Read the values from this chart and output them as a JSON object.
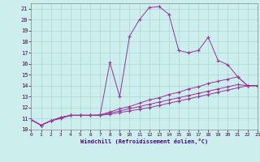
{
  "xlabel": "Windchill (Refroidissement éolien,°C)",
  "bg_color": "#cceeed",
  "grid_color": "#aad8d8",
  "line_color": "#993399",
  "xlim": [
    0,
    23
  ],
  "ylim": [
    10,
    21.5
  ],
  "xticks": [
    0,
    1,
    2,
    3,
    4,
    5,
    6,
    7,
    8,
    9,
    10,
    11,
    12,
    13,
    14,
    15,
    16,
    17,
    18,
    19,
    20,
    21,
    22,
    23
  ],
  "yticks": [
    10,
    11,
    12,
    13,
    14,
    15,
    16,
    17,
    18,
    19,
    20,
    21
  ],
  "series1": [
    [
      0,
      10.9
    ],
    [
      1,
      10.4
    ],
    [
      2,
      10.8
    ],
    [
      3,
      11.0
    ],
    [
      4,
      11.3
    ],
    [
      5,
      11.3
    ],
    [
      6,
      11.3
    ],
    [
      7,
      11.3
    ],
    [
      8,
      16.1
    ],
    [
      9,
      13.0
    ],
    [
      10,
      18.5
    ],
    [
      11,
      20.0
    ],
    [
      12,
      21.1
    ],
    [
      13,
      21.2
    ],
    [
      14,
      20.5
    ],
    [
      15,
      17.2
    ],
    [
      16,
      17.0
    ],
    [
      17,
      17.2
    ],
    [
      18,
      18.4
    ],
    [
      19,
      16.3
    ],
    [
      20,
      15.9
    ],
    [
      21,
      14.8
    ],
    [
      22,
      14.0
    ],
    [
      23,
      14.0
    ]
  ],
  "series2": [
    [
      0,
      10.9
    ],
    [
      1,
      10.4
    ],
    [
      2,
      10.8
    ],
    [
      3,
      11.1
    ],
    [
      4,
      11.3
    ],
    [
      5,
      11.3
    ],
    [
      6,
      11.3
    ],
    [
      7,
      11.35
    ],
    [
      8,
      11.6
    ],
    [
      9,
      11.9
    ],
    [
      10,
      12.1
    ],
    [
      11,
      12.4
    ],
    [
      12,
      12.7
    ],
    [
      13,
      12.9
    ],
    [
      14,
      13.2
    ],
    [
      15,
      13.4
    ],
    [
      16,
      13.7
    ],
    [
      17,
      13.9
    ],
    [
      18,
      14.2
    ],
    [
      19,
      14.4
    ],
    [
      20,
      14.6
    ],
    [
      21,
      14.8
    ],
    [
      22,
      14.0
    ],
    [
      23,
      14.0
    ]
  ],
  "series3": [
    [
      0,
      10.9
    ],
    [
      1,
      10.4
    ],
    [
      2,
      10.8
    ],
    [
      3,
      11.1
    ],
    [
      4,
      11.3
    ],
    [
      5,
      11.3
    ],
    [
      6,
      11.3
    ],
    [
      7,
      11.3
    ],
    [
      8,
      11.5
    ],
    [
      9,
      11.7
    ],
    [
      10,
      11.9
    ],
    [
      11,
      12.1
    ],
    [
      12,
      12.3
    ],
    [
      13,
      12.5
    ],
    [
      14,
      12.7
    ],
    [
      15,
      12.9
    ],
    [
      16,
      13.1
    ],
    [
      17,
      13.3
    ],
    [
      18,
      13.5
    ],
    [
      19,
      13.7
    ],
    [
      20,
      13.9
    ],
    [
      21,
      14.1
    ],
    [
      22,
      14.0
    ],
    [
      23,
      14.0
    ]
  ],
  "series4": [
    [
      0,
      10.9
    ],
    [
      1,
      10.4
    ],
    [
      2,
      10.8
    ],
    [
      3,
      11.1
    ],
    [
      4,
      11.3
    ],
    [
      5,
      11.3
    ],
    [
      6,
      11.3
    ],
    [
      7,
      11.3
    ],
    [
      8,
      11.4
    ],
    [
      9,
      11.55
    ],
    [
      10,
      11.7
    ],
    [
      11,
      11.85
    ],
    [
      12,
      12.0
    ],
    [
      13,
      12.2
    ],
    [
      14,
      12.4
    ],
    [
      15,
      12.6
    ],
    [
      16,
      12.8
    ],
    [
      17,
      13.0
    ],
    [
      18,
      13.2
    ],
    [
      19,
      13.4
    ],
    [
      20,
      13.6
    ],
    [
      21,
      13.8
    ],
    [
      22,
      14.0
    ],
    [
      23,
      14.0
    ]
  ]
}
